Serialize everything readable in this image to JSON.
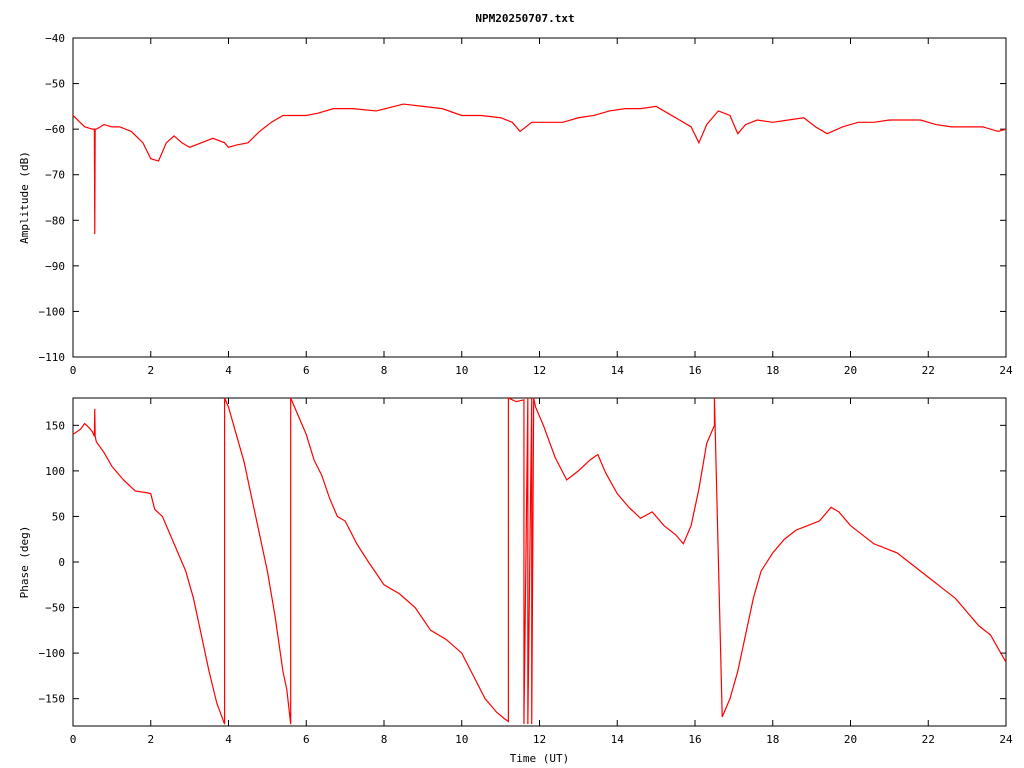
{
  "title": "NPM20250707.txt",
  "colors": {
    "series": "#ff0000",
    "axes": "#000000",
    "background": "#ffffff"
  },
  "chart_data": [
    {
      "type": "line",
      "ylabel": "Amplitude (dB)",
      "xlabel": "",
      "xlim": [
        0,
        24
      ],
      "ylim": [
        -110,
        -40
      ],
      "xticks": [
        0,
        2,
        4,
        6,
        8,
        10,
        12,
        14,
        16,
        18,
        20,
        22,
        24
      ],
      "yticks": [
        -110,
        -100,
        -90,
        -80,
        -70,
        -60,
        -50,
        -40
      ],
      "xtick_labels": [
        "0",
        "2",
        "4",
        "6",
        "8",
        "10",
        "12",
        "14",
        "16",
        "18",
        "20",
        "22",
        "24"
      ],
      "ytick_labels": [
        "−110",
        "−100",
        "−90",
        "−80",
        "−70",
        "−60",
        "−50",
        "−40"
      ],
      "grid": false,
      "series": [
        {
          "x": [
            0,
            0.3,
            0.5,
            0.55,
            0.56,
            0.57,
            0.6,
            0.8,
            1.0,
            1.2,
            1.5,
            1.8,
            2.0,
            2.2,
            2.4,
            2.6,
            2.8,
            3.0,
            3.3,
            3.6,
            3.9,
            4.0,
            4.2,
            4.5,
            4.8,
            5.1,
            5.4,
            5.7,
            6.0,
            6.3,
            6.7,
            7.2,
            7.8,
            8.5,
            9.0,
            9.5,
            10.0,
            10.5,
            11.0,
            11.3,
            11.5,
            11.8,
            12.2,
            12.6,
            13.0,
            13.4,
            13.8,
            14.2,
            14.6,
            15.0,
            15.3,
            15.6,
            15.9,
            16.1,
            16.3,
            16.6,
            16.9,
            17.1,
            17.3,
            17.6,
            18.0,
            18.4,
            18.8,
            19.1,
            19.4,
            19.8,
            20.2,
            20.6,
            21.0,
            21.4,
            21.8,
            22.2,
            22.6,
            23.0,
            23.4,
            23.8,
            24.0
          ],
          "y": [
            -57,
            -59.5,
            -60,
            -60,
            -83,
            -60,
            -60,
            -59,
            -59.5,
            -59.5,
            -60.5,
            -63,
            -66.5,
            -67,
            -63,
            -61.5,
            -63,
            -64,
            -63,
            -62,
            -63,
            -64,
            -63.5,
            -63,
            -60.5,
            -58.5,
            -57,
            -57,
            -57,
            -56.5,
            -55.5,
            -55.5,
            -56,
            -54.5,
            -55,
            -55.5,
            -57,
            -57,
            -57.5,
            -58.5,
            -60.5,
            -58.5,
            -58.5,
            -58.5,
            -57.5,
            -57,
            -56,
            -55.5,
            -55.5,
            -55,
            -56.5,
            -58,
            -59.5,
            -63,
            -59,
            -56,
            -57,
            -61,
            -59,
            -58,
            -58.5,
            -58,
            -57.5,
            -59.5,
            -61,
            -59.5,
            -58.5,
            -58.5,
            -58,
            -58,
            -58,
            -59,
            -59.5,
            -59.5,
            -59.5,
            -60.5,
            -60
          ]
        }
      ]
    },
    {
      "type": "line",
      "ylabel": "Phase (deg)",
      "xlabel": "Time (UT)",
      "xlim": [
        0,
        24
      ],
      "ylim": [
        -180,
        180
      ],
      "xticks": [
        0,
        2,
        4,
        6,
        8,
        10,
        12,
        14,
        16,
        18,
        20,
        22,
        24
      ],
      "yticks": [
        -150,
        -100,
        -50,
        0,
        50,
        100,
        150
      ],
      "xtick_labels": [
        "0",
        "2",
        "4",
        "6",
        "8",
        "10",
        "12",
        "14",
        "16",
        "18",
        "20",
        "22",
        "24"
      ],
      "ytick_labels": [
        "−150",
        "−100",
        "−50",
        "0",
        "50",
        "100",
        "150"
      ],
      "grid": false,
      "series": [
        {
          "x": [
            0,
            0.2,
            0.3,
            0.4,
            0.5,
            0.55,
            0.56,
            0.57,
            0.6,
            0.8,
            1.0,
            1.3,
            1.6,
            1.9,
            2.0,
            2.1,
            2.3,
            2.5,
            2.7,
            2.9,
            3.1,
            3.3,
            3.5,
            3.7,
            3.9,
            3.9,
            4.0,
            4.2,
            4.4,
            4.6,
            4.8,
            5.0,
            5.2,
            5.4,
            5.5,
            5.6,
            5.6,
            5.8,
            6.0,
            6.2,
            6.4,
            6.6,
            6.8,
            7.0,
            7.3,
            7.6,
            8.0,
            8.4,
            8.8,
            9.2,
            9.6,
            10.0,
            10.3,
            10.6,
            10.9,
            11.1,
            11.2,
            11.2,
            11.4,
            11.6,
            11.6,
            11.7,
            11.7,
            11.8,
            11.8,
            11.85,
            11.9,
            12.1,
            12.4,
            12.7,
            13.0,
            13.3,
            13.5,
            13.7,
            14.0,
            14.3,
            14.6,
            14.9,
            15.2,
            15.5,
            15.7,
            15.9,
            16.1,
            16.3,
            16.5,
            16.5,
            16.7,
            16.9,
            17.1,
            17.3,
            17.5,
            17.7,
            18.0,
            18.3,
            18.6,
            18.9,
            19.2,
            19.5,
            19.7,
            20.0,
            20.3,
            20.6,
            20.9,
            21.2,
            21.5,
            21.8,
            22.1,
            22.4,
            22.7,
            23.0,
            23.3,
            23.6,
            23.8,
            24.0
          ],
          "y": [
            140,
            146,
            152,
            148,
            143,
            138,
            168,
            138,
            132,
            120,
            105,
            90,
            78,
            76,
            75,
            58,
            50,
            30,
            10,
            -10,
            -40,
            -80,
            -120,
            -155,
            -178,
            180,
            170,
            140,
            110,
            70,
            30,
            -10,
            -60,
            -120,
            -140,
            -178,
            180,
            160,
            140,
            112,
            95,
            70,
            50,
            45,
            20,
            0,
            -25,
            -35,
            -50,
            -75,
            -85,
            -100,
            -125,
            -150,
            -165,
            -172,
            -175,
            180,
            176,
            178,
            -178,
            180,
            -178,
            180,
            -178,
            180,
            170,
            150,
            115,
            90,
            100,
            112,
            118,
            98,
            75,
            60,
            48,
            55,
            40,
            30,
            20,
            40,
            80,
            130,
            150,
            180,
            -170,
            -150,
            -120,
            -80,
            -40,
            -10,
            10,
            25,
            35,
            40,
            45,
            60,
            55,
            40,
            30,
            20,
            15,
            10,
            0,
            -10,
            -20,
            -30,
            -40,
            -55,
            -70,
            -80,
            -95,
            -110
          ]
        }
      ]
    }
  ]
}
